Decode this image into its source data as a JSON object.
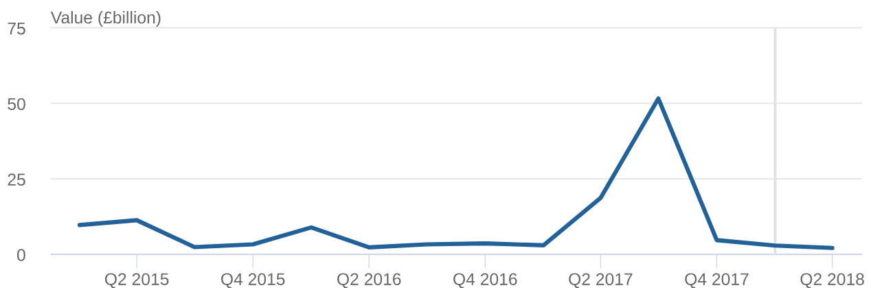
{
  "chart_data": {
    "type": "line",
    "ylabel": "Value (£billion)",
    "x": [
      "2015-01",
      "2015-04",
      "2015-07",
      "2015-10",
      "2016-01",
      "2016-04",
      "2016-07",
      "2016-10",
      "2017-01",
      "2017-04",
      "2017-07",
      "2017-10",
      "2018-01",
      "2018-04"
    ],
    "series": [
      {
        "color": "#236199",
        "values": [
          9.7,
          11.3,
          2.4,
          3.3,
          8.9,
          2.3,
          3.3,
          3.6,
          3.0,
          18.7,
          51.6,
          4.7,
          2.9,
          2.1
        ]
      }
    ],
    "xlim": [
      "2014-11-16",
      "2018-05-18"
    ],
    "xticks": [
      {
        "value": "2015-04",
        "label": "Q2 2015"
      },
      {
        "value": "2015-10",
        "label": "Q4 2015"
      },
      {
        "value": "2016-04",
        "label": "Q2 2016"
      },
      {
        "value": "2016-10",
        "label": "Q4 2016"
      },
      {
        "value": "2017-04",
        "label": "Q2 2017"
      },
      {
        "value": "2017-10",
        "label": "Q4 2017"
      },
      {
        "value": "2018-04",
        "label": "Q2 2018"
      }
    ],
    "ylim": [
      0,
      75
    ],
    "yticks": [
      0,
      25,
      50,
      75
    ],
    "grid": "y",
    "ref_lines": [
      {
        "axis": "x",
        "value": "2018-01",
        "color": "#e2e2e2"
      }
    ]
  }
}
